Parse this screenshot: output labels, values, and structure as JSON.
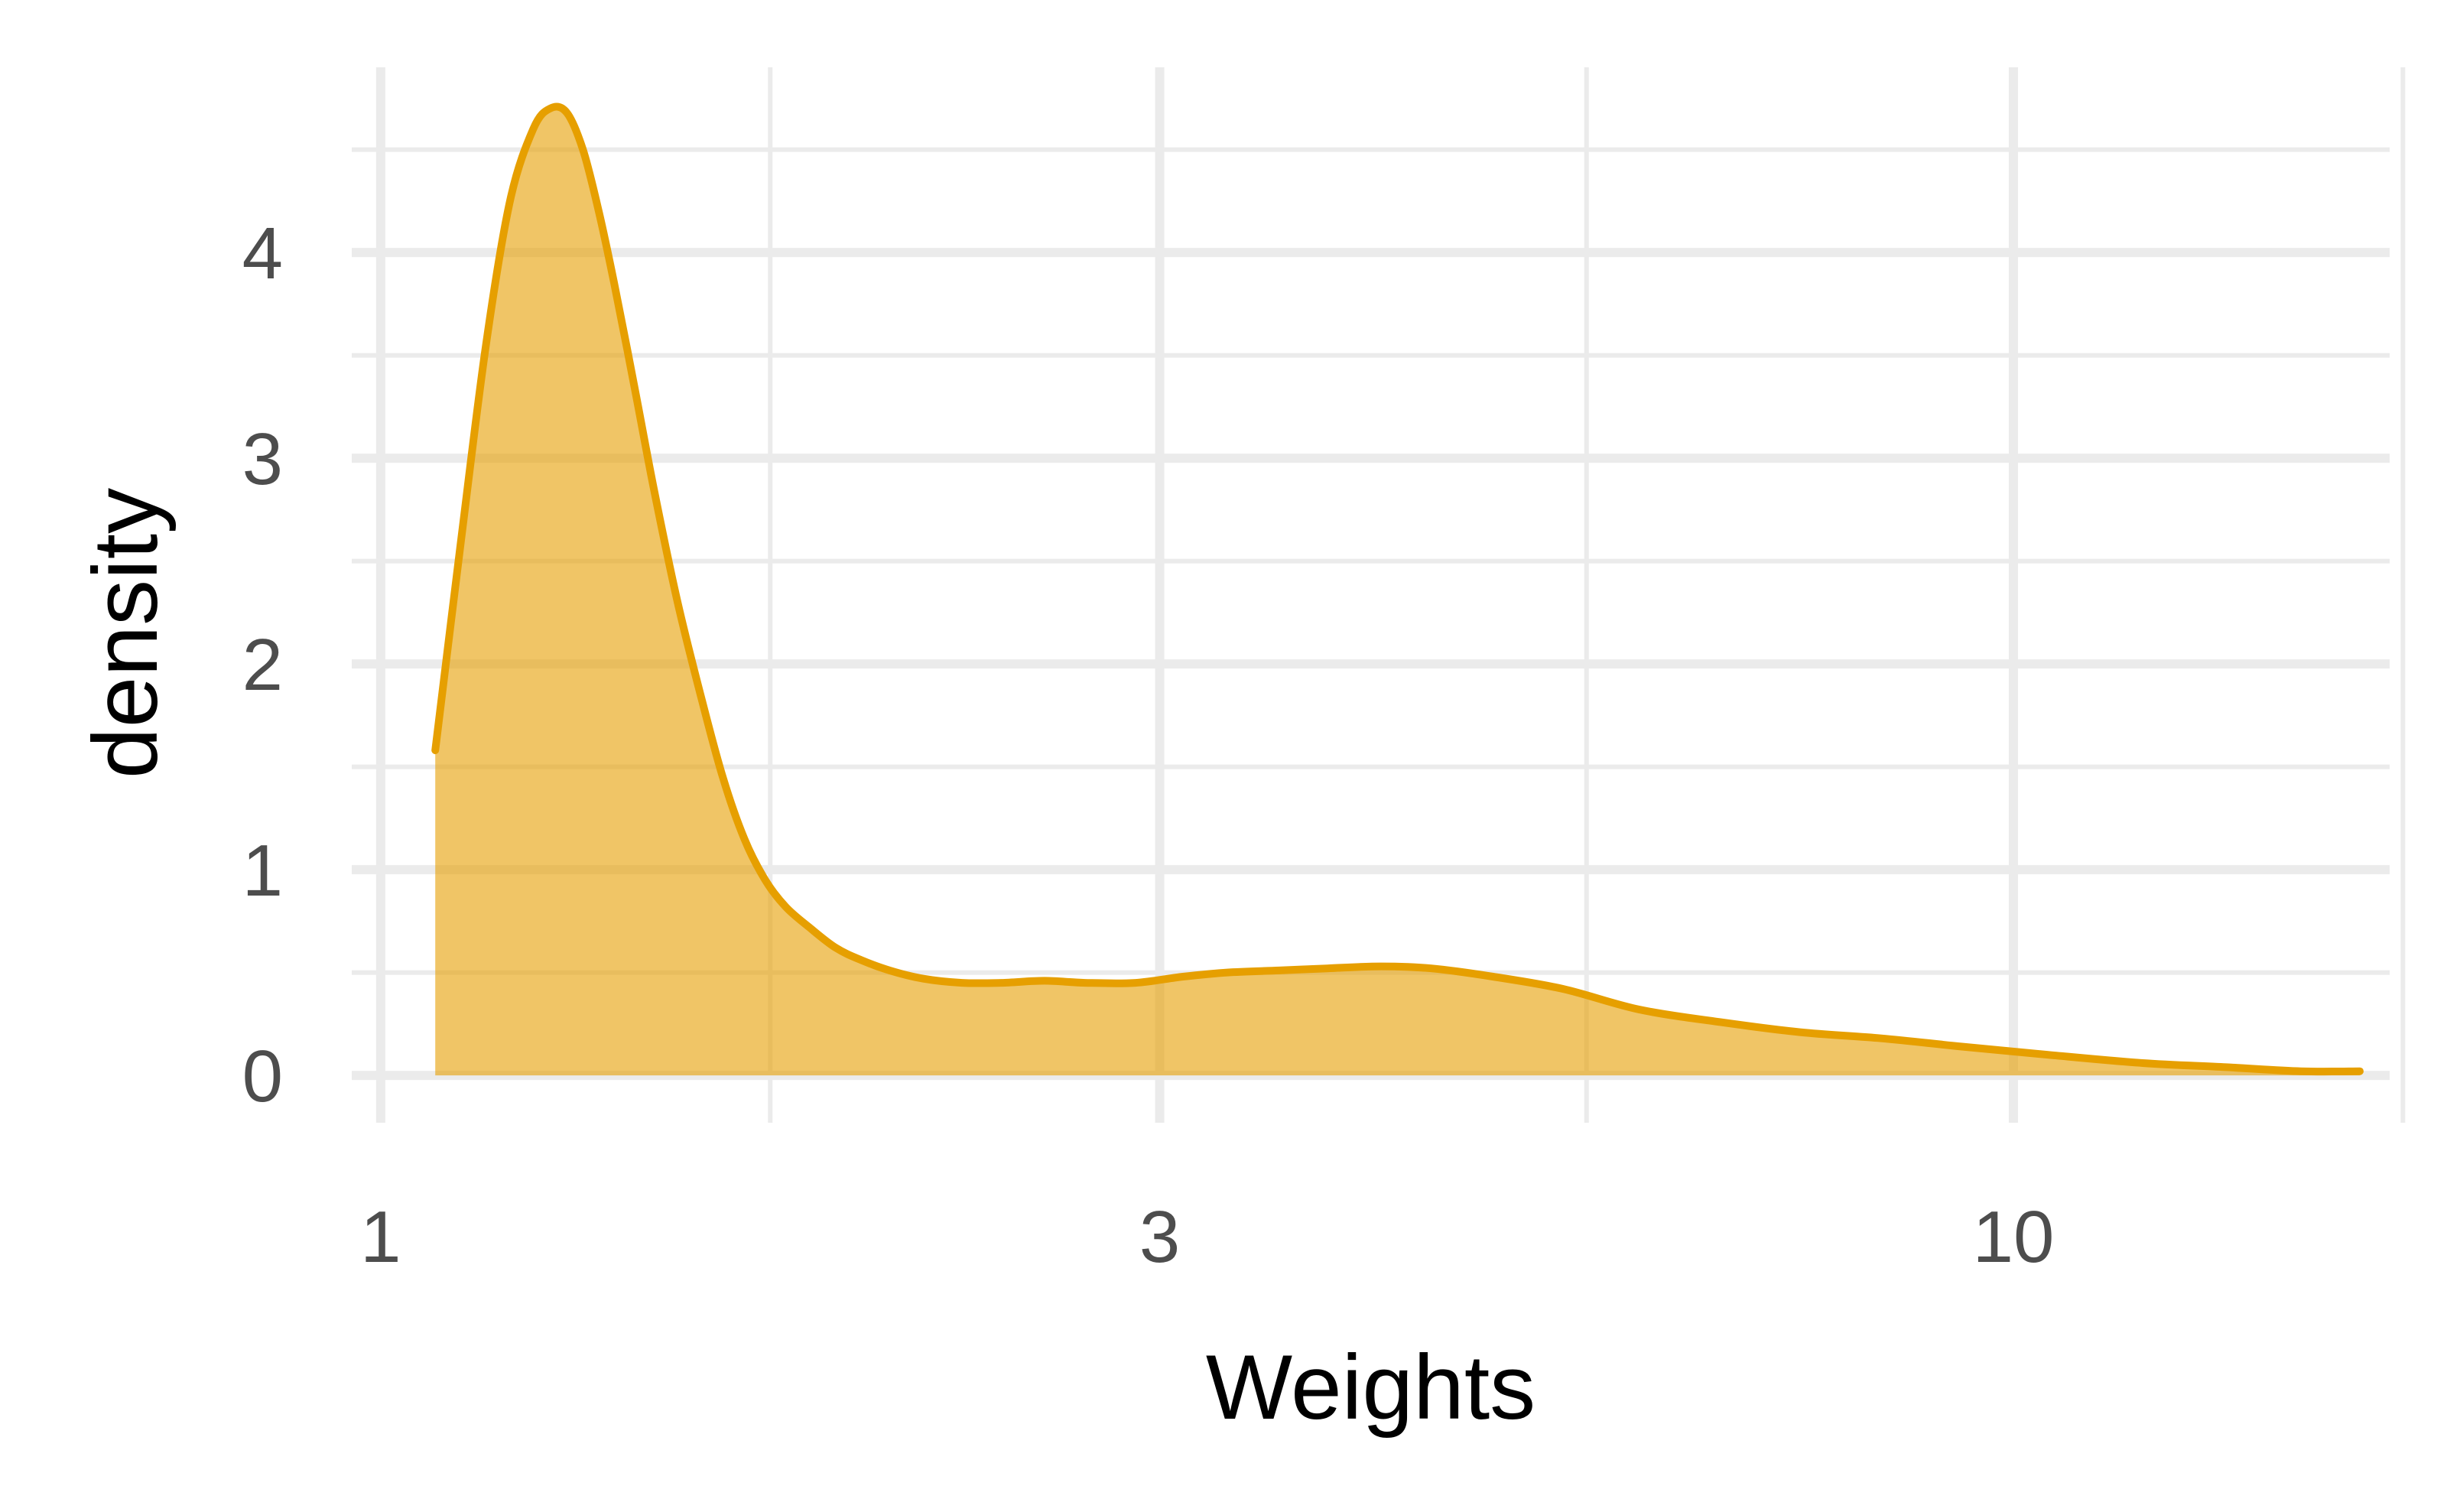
{
  "chart_data": {
    "type": "area",
    "xlabel": "Weights",
    "ylabel": "density",
    "x_scale": "log10",
    "xlim": [
      0.96,
      17.0
    ],
    "ylim": [
      -0.23,
      4.9
    ],
    "x_ticks": [
      1,
      3,
      10
    ],
    "x_tick_labels": [
      "1",
      "3",
      "10"
    ],
    "x_minor_ticks": [
      1.7321,
      5.4772,
      17.3205
    ],
    "y_ticks": [
      0,
      1,
      2,
      3,
      4
    ],
    "y_tick_labels": [
      "0",
      "1",
      "2",
      "3",
      "4"
    ],
    "y_minor_ticks": [
      0.5,
      1.5,
      2.5,
      3.5,
      4.5
    ],
    "grid": true,
    "legend": "none",
    "fill_color": "#E69F00",
    "fill_opacity": 0.6,
    "line_color": "#E69F00",
    "grid_color": "#ebebeb",
    "series": [
      {
        "x": [
          1.08,
          1.12,
          1.16,
          1.2,
          1.24,
          1.27,
          1.3,
          1.33,
          1.36,
          1.39,
          1.43,
          1.47,
          1.52,
          1.57,
          1.62,
          1.67,
          1.72,
          1.77,
          1.83,
          1.9,
          1.97,
          2.05,
          2.15,
          2.27,
          2.4,
          2.55,
          2.7,
          2.9,
          3.1,
          3.3,
          3.55,
          3.8,
          4.1,
          4.4,
          4.8,
          5.3,
          5.9,
          6.6,
          7.4,
          8.3,
          9.3,
          10.5,
          12.0,
          13.5,
          15.0,
          16.3
        ],
        "y": [
          1.58,
          2.6,
          3.55,
          4.25,
          4.6,
          4.7,
          4.68,
          4.5,
          4.2,
          3.85,
          3.35,
          2.85,
          2.3,
          1.85,
          1.45,
          1.15,
          0.95,
          0.82,
          0.72,
          0.62,
          0.56,
          0.51,
          0.47,
          0.45,
          0.45,
          0.46,
          0.45,
          0.45,
          0.48,
          0.5,
          0.51,
          0.52,
          0.53,
          0.52,
          0.48,
          0.42,
          0.32,
          0.26,
          0.21,
          0.18,
          0.14,
          0.1,
          0.06,
          0.04,
          0.02,
          0.02
        ]
      }
    ]
  }
}
